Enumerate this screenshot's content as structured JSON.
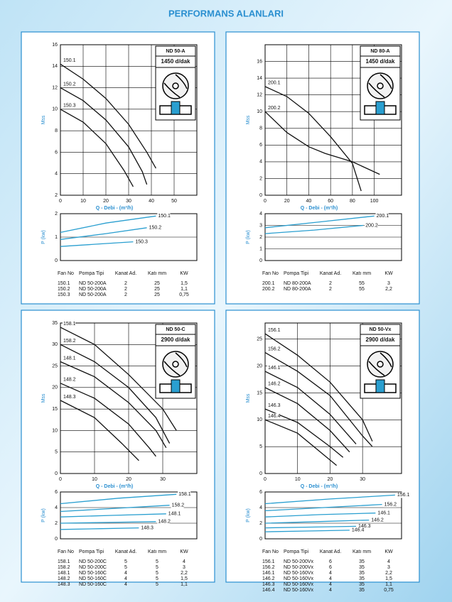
{
  "title": "PERFORMANS ALANLARI",
  "panels": [
    {
      "model": "ND 50-A",
      "speed": "1450 d/dak",
      "head": {
        "type": "line",
        "ylabel": "Mss",
        "xlabel": "Q - Debi - (m³/h)",
        "xlim": [
          0,
          60
        ],
        "xticks": [
          0,
          10,
          20,
          30,
          40,
          50
        ],
        "ylim": [
          2,
          16
        ],
        "yticks": [
          2,
          4,
          6,
          8,
          10,
          12,
          14,
          16
        ],
        "color": "#111111",
        "series": [
          {
            "name": "150.1",
            "x": [
              0,
              10,
              20,
              30,
              38,
              42
            ],
            "values": [
              14.2,
              12.8,
              11,
              8.6,
              6,
              4.5
            ]
          },
          {
            "name": "150.2",
            "x": [
              0,
              10,
              20,
              30,
              36,
              38
            ],
            "values": [
              12,
              10.8,
              9,
              6.5,
              4.2,
              3
            ]
          },
          {
            "name": "150.3",
            "x": [
              0,
              10,
              20,
              28,
              32
            ],
            "values": [
              10,
              8.8,
              6.8,
              4.3,
              2.8
            ]
          }
        ]
      },
      "power": {
        "type": "line",
        "ylabel": "P (kw)",
        "xlim": [
          0,
          60
        ],
        "ylim": [
          0,
          2
        ],
        "yticks": [
          0,
          1,
          2
        ],
        "color": "#2a9fd0",
        "series": [
          {
            "name": "150.1",
            "x": [
              0,
              20,
              42
            ],
            "values": [
              1.2,
              1.6,
              1.9
            ]
          },
          {
            "name": "150.2",
            "x": [
              0,
              20,
              38
            ],
            "values": [
              0.9,
              1.15,
              1.4
            ]
          },
          {
            "name": "150.3",
            "x": [
              0,
              16,
              32
            ],
            "values": [
              0.6,
              0.7,
              0.8
            ]
          }
        ]
      },
      "table": {
        "header": [
          "Fan No",
          "Pompa Tipi",
          "Kanat Ad.",
          "Katı mm",
          "KW"
        ],
        "rows": [
          [
            "150.1",
            "ND 50-200A",
            "2",
            "25",
            "1,5"
          ],
          [
            "150.2",
            "ND 50-200A",
            "2",
            "25",
            "1,1"
          ],
          [
            "150.3",
            "ND 50-200A",
            "2",
            "25",
            "0,75"
          ]
        ]
      }
    },
    {
      "model": "ND 80-A",
      "speed": "1450 d/dak",
      "head": {
        "type": "line",
        "ylabel": "Mss",
        "xlabel": "Q - Debi - (m³/h)",
        "xlim": [
          0,
          125
        ],
        "xticks": [
          0,
          20,
          40,
          60,
          80,
          100
        ],
        "ylim": [
          0,
          18
        ],
        "yticks": [
          0,
          2,
          4,
          6,
          8,
          10,
          12,
          14,
          16
        ],
        "color": "#111111",
        "series": [
          {
            "name": "200.1",
            "x": [
              0,
              20,
              40,
              60,
              80,
              88
            ],
            "values": [
              13,
              11.8,
              9.8,
              7,
              3.8,
              0.5
            ]
          },
          {
            "name": "200.2",
            "x": [
              0,
              20,
              40,
              55,
              80,
              105
            ],
            "values": [
              10,
              7.5,
              5.8,
              5,
              4,
              2.5
            ]
          }
        ]
      },
      "power": {
        "type": "line",
        "ylabel": "P (kw)",
        "xlim": [
          0,
          125
        ],
        "ylim": [
          0,
          4
        ],
        "yticks": [
          0,
          1,
          2,
          3,
          4
        ],
        "color": "#2a9fd0",
        "series": [
          {
            "name": "200.1",
            "x": [
              0,
              50,
              100
            ],
            "values": [
              2.8,
              3.3,
              3.8
            ]
          },
          {
            "name": "200.2",
            "x": [
              0,
              45,
              90
            ],
            "values": [
              2.3,
              2.6,
              3
            ]
          }
        ]
      },
      "table": {
        "header": [
          "Fan No",
          "Pompa Tipi",
          "Kanat Ad.",
          "Katı mm",
          "KW"
        ],
        "rows": [
          [
            "200.1",
            "ND 80-200A",
            "2",
            "55",
            "3"
          ],
          [
            "200.2",
            "ND 80-200A",
            "2",
            "55",
            "2,2"
          ]
        ]
      }
    },
    {
      "model": "ND 50-C",
      "speed": "2900 d/dak",
      "head": {
        "type": "line",
        "ylabel": "Mss",
        "xlabel": "Q - Debi - (m³/h)",
        "xlim": [
          0,
          40
        ],
        "xticks": [
          0,
          10,
          20,
          30
        ],
        "ylim": [
          0,
          35
        ],
        "yticks": [
          0,
          5,
          10,
          15,
          20,
          25,
          30,
          35
        ],
        "color": "#111111",
        "series": [
          {
            "name": "158.1",
            "x": [
              0,
              10,
              20,
              30,
              34
            ],
            "values": [
              34,
              30,
              23,
              15,
              10
            ]
          },
          {
            "name": "158.2",
            "x": [
              0,
              10,
              20,
              28,
              32
            ],
            "values": [
              30,
              26,
              20,
              13,
              7
            ]
          },
          {
            "name": "148.1",
            "x": [
              0,
              10,
              20,
              28,
              31
            ],
            "values": [
              26,
              22.5,
              16.5,
              10,
              6
            ]
          },
          {
            "name": "148.2",
            "x": [
              0,
              10,
              20,
              26,
              28
            ],
            "values": [
              21,
              17.5,
              11.5,
              6,
              4
            ]
          },
          {
            "name": "148.3",
            "x": [
              0,
              10,
              18,
              23
            ],
            "values": [
              17,
              13,
              7,
              3
            ]
          }
        ]
      },
      "power": {
        "type": "line",
        "ylabel": "P (kw)",
        "xlim": [
          0,
          40
        ],
        "ylim": [
          0,
          6
        ],
        "yticks": [
          0,
          2,
          4,
          6
        ],
        "color": "#2a9fd0",
        "series": [
          {
            "name": "158.1",
            "x": [
              0,
              17,
              34
            ],
            "values": [
              4.5,
              5.2,
              5.7
            ]
          },
          {
            "name": "158.2",
            "x": [
              0,
              16,
              32
            ],
            "values": [
              3.5,
              3.9,
              4.3
            ]
          },
          {
            "name": "148.1",
            "x": [
              0,
              15,
              31
            ],
            "values": [
              2.8,
              3,
              3.2
            ]
          },
          {
            "name": "148.2",
            "x": [
              0,
              14,
              28
            ],
            "values": [
              2,
              2.1,
              2.2
            ]
          },
          {
            "name": "148.3",
            "x": [
              0,
              12,
              23
            ],
            "values": [
              1.2,
              1.3,
              1.4
            ]
          }
        ]
      },
      "table": {
        "header": [
          "Fan No",
          "Pompa Tipi",
          "Kanat Ad.",
          "Katı mm",
          "KW"
        ],
        "rows": [
          [
            "158.1",
            "ND 50-200C",
            "5",
            "5",
            "4"
          ],
          [
            "158.2",
            "ND 50-200C",
            "5",
            "5",
            "3"
          ],
          [
            "148.1",
            "ND 50-160C",
            "4",
            "5",
            "2,2"
          ],
          [
            "148.2",
            "ND 50-160C",
            "4",
            "5",
            "1,5"
          ],
          [
            "148.3",
            "ND 50-160C",
            "4",
            "5",
            "1,1"
          ]
        ]
      }
    },
    {
      "model": "ND 50-Vx",
      "speed": "2900 d/dak",
      "head": {
        "type": "line",
        "ylabel": "Mss",
        "xlabel": "Q - Debi - (m³/h)",
        "xlim": [
          0,
          42
        ],
        "xticks": [
          0,
          10,
          20,
          30
        ],
        "ylim": [
          0,
          28
        ],
        "yticks": [
          0,
          5,
          10,
          15,
          20,
          25
        ],
        "color": "#111111",
        "series": [
          {
            "name": "156.1",
            "x": [
              0,
              10,
              20,
              30,
              33
            ],
            "values": [
              26,
              22,
              17,
              10,
              6
            ]
          },
          {
            "name": "156.2",
            "x": [
              0,
              10,
              20,
              30,
              33
            ],
            "values": [
              22.5,
              19,
              14.5,
              7,
              5
            ]
          },
          {
            "name": "146.1",
            "x": [
              0,
              10,
              20,
              28
            ],
            "values": [
              19,
              16,
              11,
              5.5
            ]
          },
          {
            "name": "146.2",
            "x": [
              0,
              10,
              20,
              26
            ],
            "values": [
              16,
              13,
              8,
              4
            ]
          },
          {
            "name": "146.3",
            "x": [
              0,
              10,
              20,
              24
            ],
            "values": [
              12,
              9.5,
              5,
              3
            ]
          },
          {
            "name": "146.4",
            "x": [
              0,
              10,
              18,
              22
            ],
            "values": [
              10,
              7.5,
              3.5,
              1.5
            ]
          }
        ]
      },
      "power": {
        "type": "line",
        "ylabel": "P (kw)",
        "xlim": [
          0,
          42
        ],
        "ylim": [
          0,
          6
        ],
        "yticks": [
          0,
          2,
          4,
          6
        ],
        "color": "#2a9fd0",
        "series": [
          {
            "name": "156.1",
            "x": [
              0,
              20,
              40
            ],
            "values": [
              4.5,
              5.1,
              5.6
            ]
          },
          {
            "name": "156.2",
            "x": [
              0,
              18,
              36
            ],
            "values": [
              3.6,
              4,
              4.4
            ]
          },
          {
            "name": "146.1",
            "x": [
              0,
              17,
              34
            ],
            "values": [
              2.8,
              3.1,
              3.3
            ]
          },
          {
            "name": "146.2",
            "x": [
              0,
              16,
              32
            ],
            "values": [
              2,
              2.2,
              2.4
            ]
          },
          {
            "name": "146.3",
            "x": [
              0,
              14,
              28
            ],
            "values": [
              1.4,
              1.5,
              1.6
            ]
          },
          {
            "name": "146.4",
            "x": [
              0,
              13,
              26
            ],
            "values": [
              0.9,
              1,
              1.1
            ]
          }
        ]
      },
      "table": {
        "header": [
          "Fan No",
          "Pompa Tipi",
          "Kanat Ad.",
          "Katı mm",
          "KW"
        ],
        "rows": [
          [
            "156.1",
            "ND 50-200Vx",
            "6",
            "35",
            "4"
          ],
          [
            "156.2",
            "ND 50-200Vx",
            "6",
            "35",
            "3"
          ],
          [
            "146.1",
            "ND 50-160Vx",
            "4",
            "35",
            "2,2"
          ],
          [
            "146.2",
            "ND 50-160Vx",
            "4",
            "35",
            "1,5"
          ],
          [
            "146.3",
            "ND 50-160Vx",
            "4",
            "35",
            "1,1"
          ],
          [
            "146.4",
            "ND 50-160Vx",
            "4",
            "35",
            "0,75"
          ]
        ]
      }
    }
  ]
}
